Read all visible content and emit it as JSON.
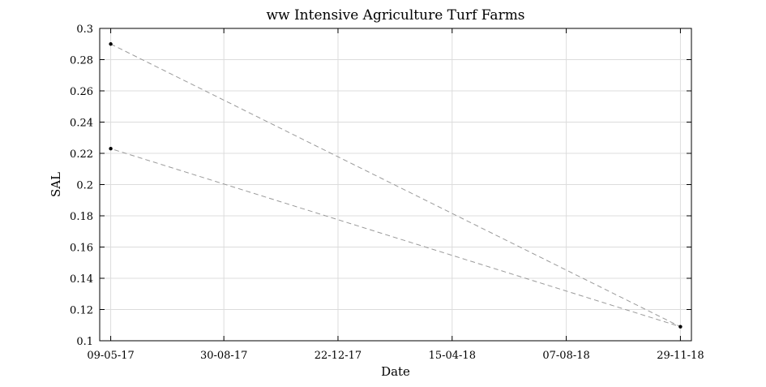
{
  "chart_data": {
    "type": "line",
    "title": "ww Intensive Agriculture Turf Farms",
    "xlabel": "Date",
    "ylabel": "SAL",
    "x_tick_labels": [
      "09-05-17",
      "30-08-17",
      "22-12-17",
      "15-04-18",
      "07-08-18",
      "29-11-18"
    ],
    "y_tick_labels": [
      "0.1",
      "0.12",
      "0.14",
      "0.16",
      "0.18",
      "0.2",
      "0.22",
      "0.24",
      "0.26",
      "0.28",
      "0.3"
    ],
    "xlim": [
      "2017-04-28",
      "2018-12-10"
    ],
    "ylim": [
      0.1,
      0.3
    ],
    "grid": true,
    "series": [
      {
        "x": [
          "2017-05-09",
          "2018-11-29",
          "2017-05-09"
        ],
        "y": [
          0.29,
          0.109,
          0.223
        ]
      }
    ],
    "line_color": "#9a9a9a",
    "marker_color": "#000000"
  }
}
